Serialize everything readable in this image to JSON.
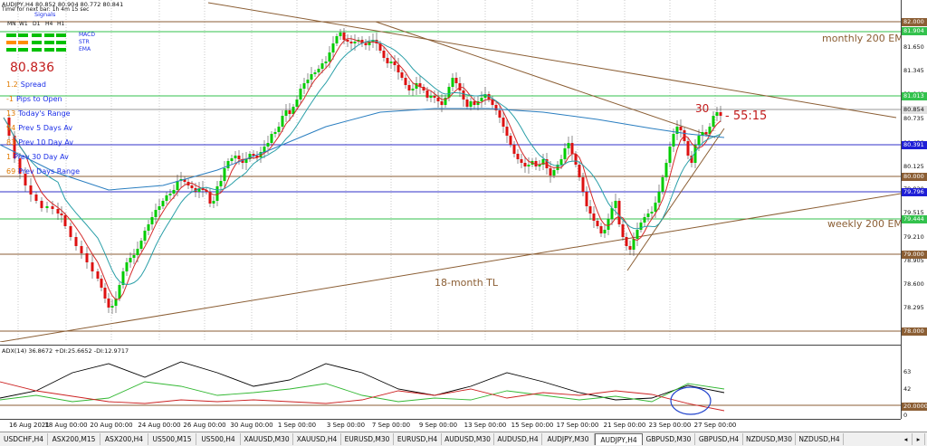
{
  "window": {
    "symbol_line": "AUDJPY,H4  80.852 80.904 80.772 80.841",
    "sub_line": "Time for next bar: 1h 4m 15 sec"
  },
  "signals": {
    "title": "Signals",
    "timeframes": [
      "MN",
      "W1",
      "D1",
      "H4",
      "H1"
    ],
    "rows": [
      {
        "label": "MACD",
        "colors": [
          "#00c000",
          "#00c000",
          "#00c000",
          "#00c000",
          "#00c000"
        ]
      },
      {
        "label": "STR",
        "colors": [
          "#ff8c00",
          "#ff8c00",
          "#00c000",
          "#00c000",
          "#00c000"
        ]
      },
      {
        "label": "EMA",
        "colors": [
          "#00c000",
          "#00c000",
          "#00c000",
          "#00c000",
          "#00c000"
        ]
      }
    ]
  },
  "info_panel": {
    "price": "80.836",
    "rows": [
      {
        "num": "1.2",
        "label": "Spread"
      },
      {
        "num": "-1",
        "label": "Pips to Open"
      },
      {
        "num": "13",
        "label": "Today's Range"
      },
      {
        "num": "94",
        "label": "Prev 5 Days Av"
      },
      {
        "num": "83",
        "label": "Prev 10 Day Av"
      },
      {
        "num": "1",
        "label": "Prev 30 Day Av"
      },
      {
        "num": "69",
        "label": "Prev Days Range"
      }
    ]
  },
  "annotations": {
    "monthly": "monthly 200 EMA",
    "weekly": "weekly 200 EMA",
    "trendline": "18-month TL",
    "count": "30",
    "timer": "- 55:15"
  },
  "price_scale": {
    "labels": [
      "81.650",
      "81.345",
      "81.040",
      "80.735",
      "80.430",
      "80.125",
      "79.820",
      "79.515",
      "79.210",
      "78.905",
      "78.600",
      "78.295"
    ],
    "tags": [
      {
        "text": "82.000",
        "bg": "#8b5e34"
      },
      {
        "text": "81.904",
        "bg": "#33c24d"
      },
      {
        "text": "81.013",
        "bg": "#33c24d"
      },
      {
        "text": "80.854",
        "bg": "#e0e0e0"
      },
      {
        "text": "80.391",
        "bg": "#1f1fd6"
      },
      {
        "text": "80.000",
        "bg": "#8b5e34"
      },
      {
        "text": "79.796",
        "bg": "#1f1fd6"
      },
      {
        "text": "79.444",
        "bg": "#33c24d"
      },
      {
        "text": "79.000",
        "bg": "#8b5e34"
      },
      {
        "text": "78.000",
        "bg": "#8b5e34"
      }
    ]
  },
  "indicator": {
    "title": "ADX(14) 36.8672 +DI:25.6652 -DI:12.9717",
    "levels": [
      "63",
      "42",
      "20.0000",
      "0"
    ]
  },
  "time_axis": {
    "labels": [
      "16 Aug 2021",
      "18 Aug 00:00",
      "20 Aug 00:00",
      "24 Aug 00:00",
      "26 Aug 00:00",
      "30 Aug 00:00",
      "1 Sep 00:00",
      "3 Sep 00:00",
      "7 Sep 00:00",
      "9 Sep 00:00",
      "13 Sep 00:00",
      "15 Sep 00:00",
      "17 Sep 00:00",
      "21 Sep 00:00",
      "23 Sep 00:00",
      "27 Sep 00:00"
    ]
  },
  "tabs": {
    "items": [
      "USDCHF,H4",
      "ASX200,M15",
      "ASX200,H4",
      "US500,M15",
      "US500,H4",
      "XAUUSD,M30",
      "XAUUSD,H4",
      "EURUSD,M30",
      "EURUSD,H4",
      "AUDUSD,M30",
      "AUDUSD,H4",
      "AUDJPY,M30",
      "AUDJPY,H4",
      "GBPUSD,M30",
      "GBPUSD,H4",
      "NZDUSD,M30",
      "NZDUSD,H4"
    ],
    "active": "AUDJPY,H4"
  },
  "colors": {
    "bull": "#00cc00",
    "bear": "#dd1111",
    "ema_red": "#d42a2a",
    "ema_teal": "#2a9fa8",
    "ema_blue": "#2a7ec0",
    "brown": "#8b5e34",
    "green_line": "#33c24d",
    "adx_black": "#000000",
    "adx_green": "#33b833",
    "adx_red": "#cc2222",
    "circle": "#2244cc"
  }
}
